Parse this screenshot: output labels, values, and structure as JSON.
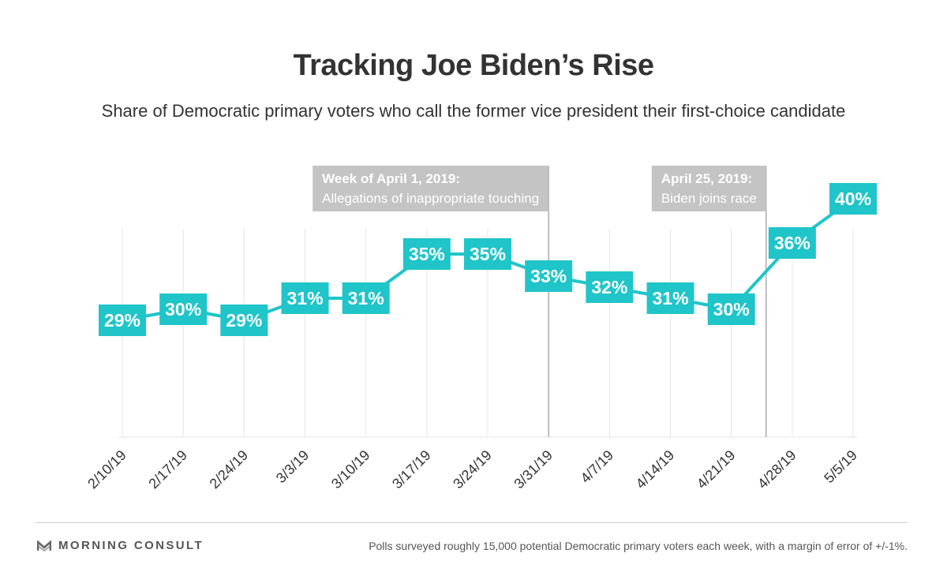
{
  "header": {
    "title": "Tracking Joe Biden’s Rise",
    "subtitle": "Share of Democratic primary voters who call the former vice president their first-choice candidate"
  },
  "chart_data": {
    "type": "line",
    "categories": [
      "2/10/19",
      "2/17/19",
      "2/24/19",
      "3/3/19",
      "3/10/19",
      "3/17/19",
      "3/24/19",
      "3/31/19",
      "4/7/19",
      "4/14/19",
      "4/21/19",
      "4/28/19",
      "5/5/19"
    ],
    "values": [
      29,
      30,
      29,
      31,
      31,
      35,
      35,
      33,
      32,
      31,
      30,
      36,
      40
    ],
    "value_labels": [
      "29%",
      "30%",
      "29%",
      "31%",
      "31%",
      "35%",
      "35%",
      "33%",
      "32%",
      "31%",
      "30%",
      "36%",
      "40%"
    ],
    "unit": "%",
    "title": "Tracking Joe Biden’s Rise",
    "subtitle": "Share of Democratic primary voters who call the former vice president their first-choice candidate",
    "xlabel": "",
    "ylabel": "",
    "grid": "vertical",
    "annotations": [
      {
        "lines": [
          "Week of April 1, 2019:",
          "Allegations of inappropriate touching"
        ],
        "x": "3/31/19"
      },
      {
        "lines": [
          "April 25, 2019:",
          "Biden joins race"
        ],
        "x": "4/25/19"
      }
    ],
    "colors": {
      "line": "#1fc5c9",
      "label_text": "#ffffff",
      "annotation_box": "#c4c4c4",
      "grid": "#e6e6e6",
      "axis": "#999999"
    }
  },
  "footer": {
    "brand": "MORNING CONSULT",
    "brand_icon": "morning-consult-logo-icon",
    "note": "Polls surveyed roughly 15,000 potential Democratic primary voters each week, with a margin of error of +/-1%."
  }
}
